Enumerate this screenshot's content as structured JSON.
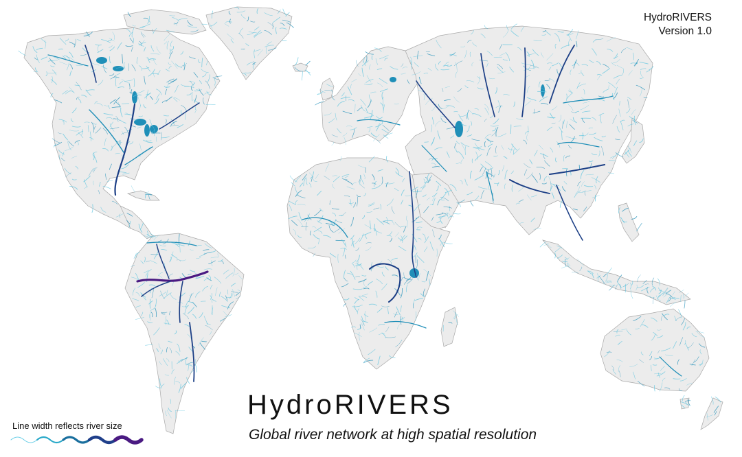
{
  "header": {
    "corner_name": "HydroRIVERS",
    "corner_version": "Version 1.0"
  },
  "title": "HydroRIVERS",
  "subtitle": "Global river network at high spatial resolution",
  "legend": {
    "label": "Line width reflects river size",
    "colors": [
      "#6fd0e8",
      "#2aa9c9",
      "#1a6f9e",
      "#1f3f8a",
      "#4a1a82"
    ]
  },
  "colors": {
    "land": "#ececec",
    "coast": "#a8a8a8",
    "river_small": "#5ec4df",
    "river_medium": "#1f8fb8",
    "river_large": "#1c3f86",
    "river_largest": "#4a1a82",
    "lake": "#1f8fb8"
  }
}
